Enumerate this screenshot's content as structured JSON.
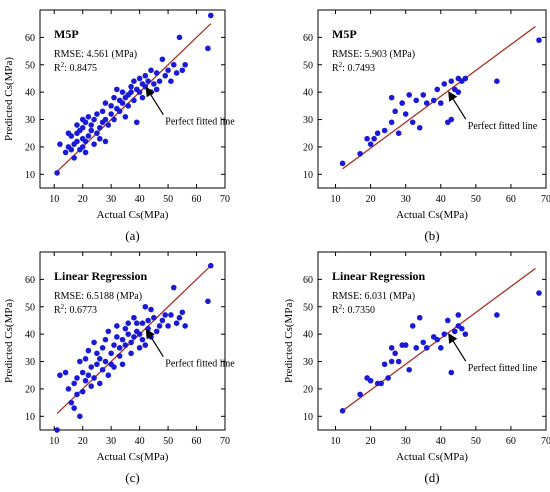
{
  "colors": {
    "point": "#1a1ad6",
    "fit_line": "#a83228",
    "axis": "#000000",
    "arrow": "#000000"
  },
  "chart_data": [
    {
      "type": "scatter",
      "panel_label": "(a)",
      "title": "M5P",
      "stats": {
        "rmse": "RMSE: 4.561 (MPa)",
        "r2_prefix": "R",
        "r2_sup": "2",
        "r2_value": ": 0.8475"
      },
      "annotation": "Perfect fitted line",
      "xlabel": "Actual Cs(MPa)",
      "ylabel": "Predicted Cs(MPa)",
      "xlim": [
        5,
        70
      ],
      "ylim": [
        5,
        70
      ],
      "xticks": [
        10,
        20,
        30,
        40,
        50,
        60,
        70
      ],
      "yticks": [
        10,
        20,
        30,
        40,
        50,
        60
      ],
      "fit_line": [
        [
          11,
          11
        ],
        [
          65,
          65
        ]
      ],
      "points": [
        [
          11,
          10.5
        ],
        [
          12,
          21
        ],
        [
          14,
          18
        ],
        [
          15,
          20
        ],
        [
          15,
          25
        ],
        [
          16,
          24
        ],
        [
          16,
          19
        ],
        [
          17,
          16
        ],
        [
          17,
          21
        ],
        [
          18,
          22
        ],
        [
          18,
          25
        ],
        [
          18,
          28
        ],
        [
          19,
          19
        ],
        [
          19,
          26
        ],
        [
          20,
          20
        ],
        [
          20,
          23
        ],
        [
          20,
          27
        ],
        [
          20,
          30
        ],
        [
          21,
          18
        ],
        [
          21,
          22
        ],
        [
          21,
          29
        ],
        [
          22,
          24
        ],
        [
          22,
          31
        ],
        [
          23,
          26
        ],
        [
          23,
          28
        ],
        [
          24,
          21
        ],
        [
          24,
          30
        ],
        [
          25,
          25
        ],
        [
          25,
          32
        ],
        [
          26,
          27
        ],
        [
          26,
          23
        ],
        [
          27,
          29
        ],
        [
          27,
          33
        ],
        [
          28,
          22
        ],
        [
          28,
          30
        ],
        [
          28,
          36
        ],
        [
          29,
          28
        ],
        [
          30,
          32
        ],
        [
          30,
          35
        ],
        [
          31,
          30
        ],
        [
          31,
          38
        ],
        [
          32,
          34
        ],
        [
          32,
          41
        ],
        [
          33,
          33
        ],
        [
          33,
          37
        ],
        [
          34,
          36
        ],
        [
          34,
          40
        ],
        [
          35,
          38
        ],
        [
          35,
          31
        ],
        [
          36,
          39
        ],
        [
          36,
          35
        ],
        [
          37,
          42
        ],
        [
          37,
          40
        ],
        [
          38,
          37
        ],
        [
          38,
          44
        ],
        [
          39,
          41
        ],
        [
          39,
          29
        ],
        [
          40,
          40
        ],
        [
          40,
          45
        ],
        [
          41,
          43
        ],
        [
          41,
          38
        ],
        [
          42,
          42
        ],
        [
          42,
          46
        ],
        [
          43,
          44
        ],
        [
          44,
          40
        ],
        [
          44,
          48
        ],
        [
          45,
          43
        ],
        [
          46,
          47
        ],
        [
          46,
          41
        ],
        [
          47,
          44
        ],
        [
          48,
          52
        ],
        [
          49,
          46
        ],
        [
          50,
          48
        ],
        [
          51,
          44
        ],
        [
          52,
          50
        ],
        [
          53,
          47
        ],
        [
          54,
          60
        ],
        [
          55,
          48
        ],
        [
          56,
          50
        ],
        [
          64,
          56
        ],
        [
          65,
          68
        ]
      ]
    },
    {
      "type": "scatter",
      "panel_label": "(b)",
      "title": "M5P",
      "stats": {
        "rmse": "RMSE: 5.903 (MPa)",
        "r2_prefix": "R",
        "r2_sup": "2",
        "r2_value": ": 0.7493"
      },
      "annotation": "Perfect fitted line",
      "xlabel": "Actual Cs(MPa)",
      "ylabel": "",
      "xlim": [
        5,
        70
      ],
      "ylim": [
        5,
        70
      ],
      "xticks": [
        10,
        20,
        30,
        40,
        50,
        60,
        70
      ],
      "yticks": [
        10,
        20,
        30,
        40,
        50,
        60
      ],
      "fit_line": [
        [
          12,
          12
        ],
        [
          67,
          64
        ]
      ],
      "points": [
        [
          12,
          14
        ],
        [
          17,
          17.5
        ],
        [
          19,
          23
        ],
        [
          20,
          21
        ],
        [
          21,
          23
        ],
        [
          22,
          25
        ],
        [
          24,
          26
        ],
        [
          26,
          29
        ],
        [
          26,
          38
        ],
        [
          27,
          33
        ],
        [
          28,
          25
        ],
        [
          29,
          36
        ],
        [
          30,
          32
        ],
        [
          31,
          39
        ],
        [
          32,
          29
        ],
        [
          33,
          37
        ],
        [
          34,
          27
        ],
        [
          35,
          39
        ],
        [
          36,
          36
        ],
        [
          38,
          37
        ],
        [
          39,
          41
        ],
        [
          40,
          36
        ],
        [
          41,
          43
        ],
        [
          42,
          29
        ],
        [
          43,
          44
        ],
        [
          43,
          30
        ],
        [
          44,
          41
        ],
        [
          45,
          40
        ],
        [
          45,
          45
        ],
        [
          46,
          44
        ],
        [
          47,
          45
        ],
        [
          56,
          44
        ],
        [
          68,
          59
        ]
      ]
    },
    {
      "type": "scatter",
      "panel_label": "(c)",
      "title": "Linear Regression",
      "stats": {
        "rmse": "RMSE: 6.5188 (MPa)",
        "r2_prefix": "R",
        "r2_sup": "2",
        "r2_value": ": 0.6773"
      },
      "annotation": "Perfect fitted line",
      "xlabel": "Actual Cs(MPa)",
      "ylabel": "Predicted Cs(MPa)",
      "xlim": [
        5,
        70
      ],
      "ylim": [
        5,
        70
      ],
      "xticks": [
        10,
        20,
        30,
        40,
        50,
        60,
        70
      ],
      "yticks": [
        10,
        20,
        30,
        40,
        50,
        60
      ],
      "fit_line": [
        [
          11,
          11
        ],
        [
          65,
          65
        ]
      ],
      "points": [
        [
          11,
          5
        ],
        [
          12,
          25
        ],
        [
          14,
          26
        ],
        [
          15,
          20
        ],
        [
          16,
          15
        ],
        [
          17,
          22
        ],
        [
          17,
          13
        ],
        [
          18,
          18
        ],
        [
          18,
          24
        ],
        [
          19,
          30
        ],
        [
          19,
          10
        ],
        [
          20,
          26
        ],
        [
          20,
          19
        ],
        [
          21,
          31
        ],
        [
          21,
          23
        ],
        [
          22,
          25
        ],
        [
          22,
          34
        ],
        [
          23,
          21
        ],
        [
          23,
          28
        ],
        [
          24,
          37
        ],
        [
          24,
          24
        ],
        [
          25,
          29
        ],
        [
          25,
          33
        ],
        [
          26,
          31
        ],
        [
          26,
          22
        ],
        [
          27,
          35
        ],
        [
          27,
          27
        ],
        [
          28,
          30
        ],
        [
          28,
          38
        ],
        [
          29,
          25
        ],
        [
          29,
          41
        ],
        [
          30,
          33
        ],
        [
          30,
          29
        ],
        [
          31,
          36
        ],
        [
          31,
          28
        ],
        [
          32,
          39
        ],
        [
          32,
          43
        ],
        [
          33,
          32
        ],
        [
          33,
          35
        ],
        [
          34,
          38
        ],
        [
          34,
          29
        ],
        [
          35,
          42
        ],
        [
          35,
          36
        ],
        [
          36,
          40
        ],
        [
          36,
          44
        ],
        [
          37,
          37
        ],
        [
          37,
          33
        ],
        [
          38,
          46
        ],
        [
          38,
          39
        ],
        [
          39,
          41
        ],
        [
          39,
          44
        ],
        [
          40,
          35
        ],
        [
          40,
          40
        ],
        [
          41,
          44
        ],
        [
          41,
          38
        ],
        [
          42,
          50
        ],
        [
          42,
          36
        ],
        [
          43,
          42
        ],
        [
          43,
          45
        ],
        [
          44,
          49
        ],
        [
          44,
          39
        ],
        [
          45,
          46
        ],
        [
          46,
          41
        ],
        [
          47,
          43
        ],
        [
          48,
          45
        ],
        [
          49,
          47
        ],
        [
          50,
          43
        ],
        [
          51,
          47
        ],
        [
          52,
          57
        ],
        [
          53,
          44
        ],
        [
          54,
          46
        ],
        [
          55,
          48
        ],
        [
          56,
          43
        ],
        [
          64,
          52
        ],
        [
          65,
          65
        ]
      ]
    },
    {
      "type": "scatter",
      "panel_label": "(d)",
      "title": "Linear Regression",
      "stats": {
        "rmse": "RMSE: 6.031 (MPa)",
        "r2_prefix": "R",
        "r2_sup": "2",
        "r2_value": ": 0.7350"
      },
      "annotation": "Perfect fitted line",
      "xlabel": "Actual Cs(MPa)",
      "ylabel": "Predicted Cs(MPa)",
      "xlim": [
        5,
        70
      ],
      "ylim": [
        5,
        70
      ],
      "xticks": [
        10,
        20,
        30,
        40,
        50,
        60,
        70
      ],
      "yticks": [
        10,
        20,
        30,
        40,
        50,
        60
      ],
      "fit_line": [
        [
          12,
          12
        ],
        [
          67,
          64
        ]
      ],
      "points": [
        [
          12,
          12
        ],
        [
          17,
          18
        ],
        [
          19,
          24
        ],
        [
          20,
          23
        ],
        [
          22,
          22
        ],
        [
          23,
          22
        ],
        [
          24,
          29
        ],
        [
          25,
          24
        ],
        [
          26,
          35
        ],
        [
          26,
          30
        ],
        [
          27,
          33
        ],
        [
          28,
          30
        ],
        [
          29,
          36
        ],
        [
          30,
          36
        ],
        [
          31,
          27
        ],
        [
          32,
          43
        ],
        [
          33,
          35
        ],
        [
          34,
          46
        ],
        [
          35,
          37
        ],
        [
          36,
          35
        ],
        [
          38,
          39
        ],
        [
          39,
          38
        ],
        [
          40,
          35
        ],
        [
          41,
          40
        ],
        [
          42,
          45
        ],
        [
          43,
          26
        ],
        [
          44,
          41
        ],
        [
          45,
          43
        ],
        [
          45,
          47
        ],
        [
          46,
          42
        ],
        [
          47,
          40
        ],
        [
          56,
          47
        ],
        [
          68,
          55
        ]
      ]
    }
  ]
}
